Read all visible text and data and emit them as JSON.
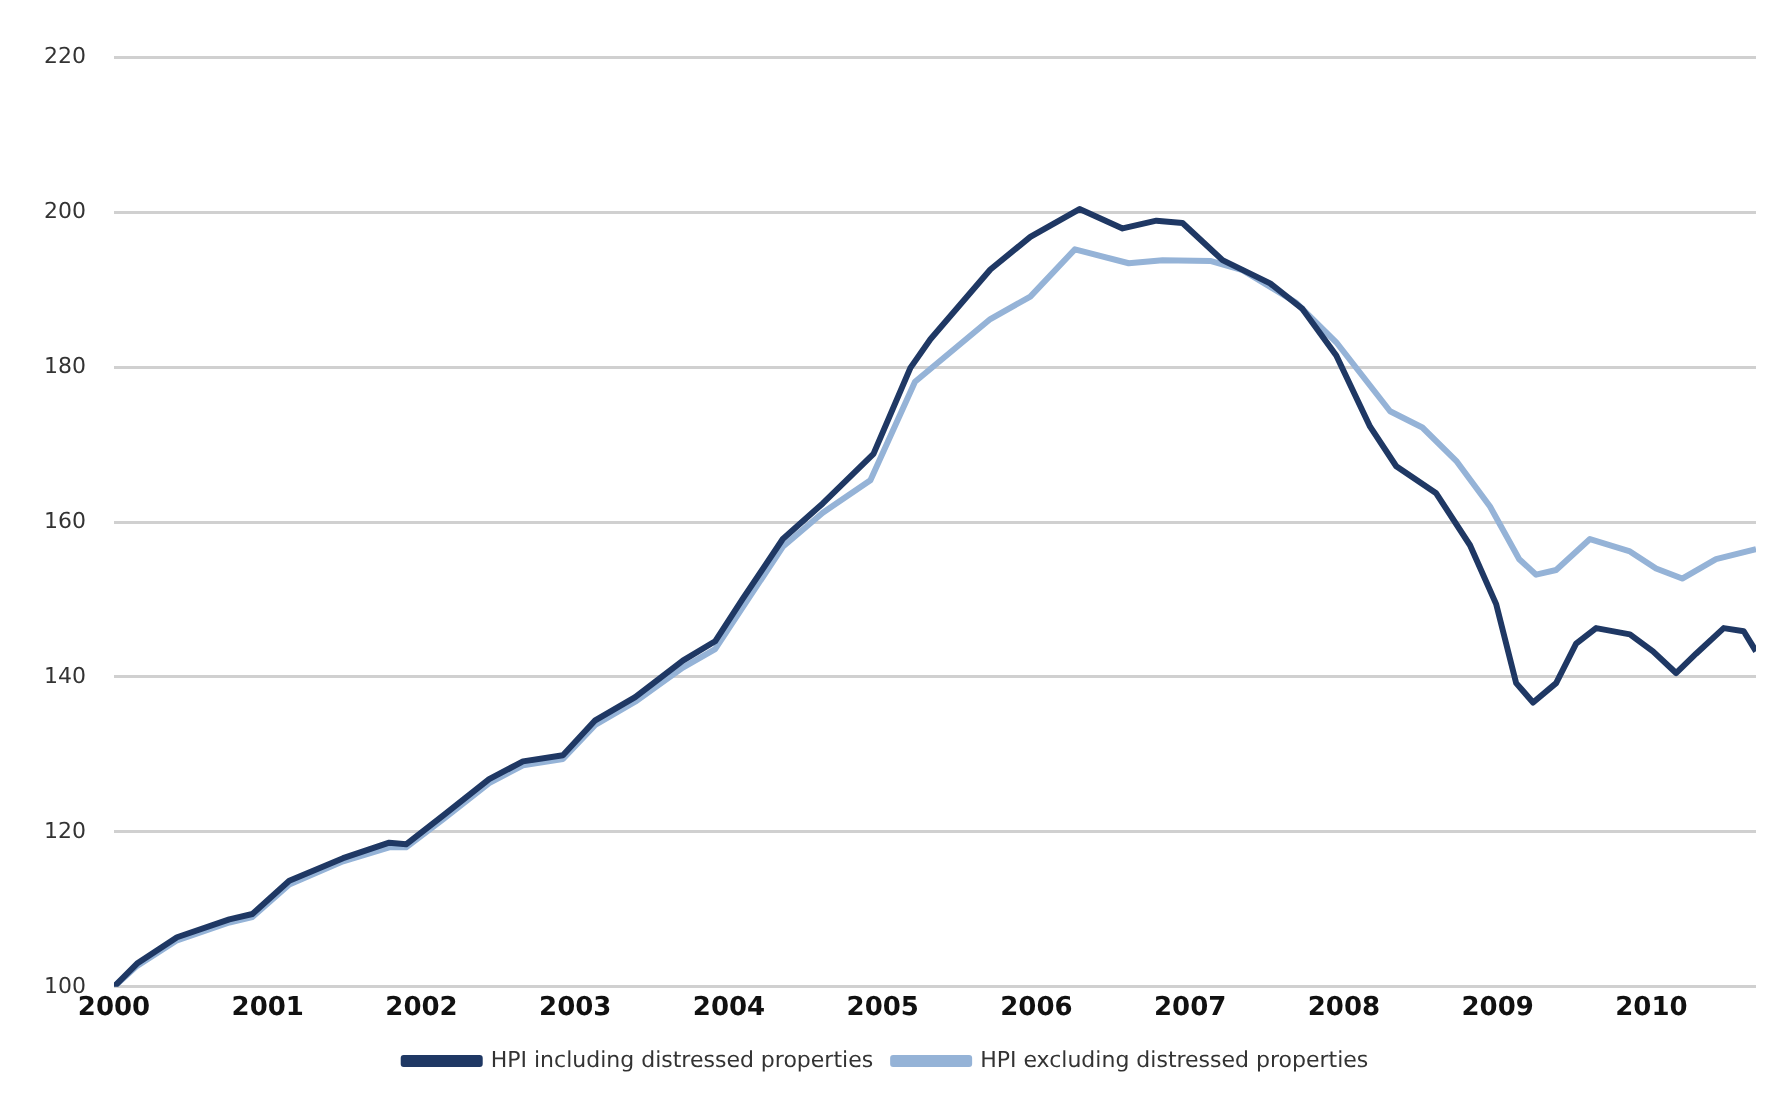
{
  "chart_data": {
    "type": "line",
    "series": [
      {
        "name": "HPI including distressed properties",
        "color": "#1f3864",
        "x": [
          2000,
          2000.15,
          2000.41,
          2000.75,
          2000.9,
          2001.14,
          2001.49,
          2001.79,
          2001.9,
          2002.14,
          2002.44,
          2002.66,
          2002.92,
          2003.13,
          2003.39,
          2003.7,
          2003.91,
          2004.09,
          2004.35,
          2004.61,
          2004.94,
          2005.18,
          2005.31,
          2005.7,
          2005.96,
          2006.28,
          2006.56,
          2006.78,
          2006.95,
          2007.21,
          2007.52,
          2007.73,
          2007.95,
          2008.17,
          2008.34,
          2008.6,
          2008.82,
          2008.99,
          2009.12,
          2009.23,
          2009.38,
          2009.51,
          2009.64,
          2009.86,
          2010.01,
          2010.16,
          2010.29,
          2010.47,
          2010.6,
          2010.68
        ],
        "values": [
          100,
          103,
          106.4,
          108.7,
          109.4,
          113.7,
          116.6,
          118.6,
          118.4,
          122.1,
          126.8,
          129.1,
          129.9,
          134.4,
          137.4,
          142.1,
          144.6,
          150.1,
          157.8,
          162.4,
          168.8,
          179.9,
          183.6,
          192.6,
          196.8,
          200.4,
          197.9,
          198.9,
          198.6,
          193.8,
          190.8,
          187.5,
          181.5,
          172.3,
          167.2,
          163.7,
          157,
          149.4,
          139.2,
          136.7,
          139.2,
          144.3,
          146.3,
          145.5,
          143.3,
          140.5,
          143,
          146.3,
          145.9,
          143.3
        ]
      },
      {
        "name": "HPI excluding distressed properties",
        "color": "#95b3d7",
        "x": [
          2000,
          2000.15,
          2000.41,
          2000.75,
          2000.9,
          2001.14,
          2001.49,
          2001.79,
          2001.9,
          2002.14,
          2002.44,
          2002.66,
          2002.92,
          2003.13,
          2003.39,
          2003.7,
          2003.91,
          2004.09,
          2004.35,
          2004.61,
          2004.92,
          2005.21,
          2005.7,
          2005.96,
          2006.25,
          2006.6,
          2006.82,
          2007.13,
          2007.34,
          2007.69,
          2007.95,
          2008.3,
          2008.51,
          2008.73,
          2008.95,
          2009.14,
          2009.25,
          2009.38,
          2009.6,
          2009.86,
          2010.03,
          2010.2,
          2010.42,
          2010.68
        ],
        "values": [
          100,
          102.7,
          106,
          108.3,
          109,
          113.2,
          116.2,
          118,
          118,
          121.6,
          126.3,
          128.6,
          129.4,
          133.8,
          136.8,
          141.2,
          143.6,
          149,
          156.8,
          161.2,
          165.4,
          178.1,
          186.2,
          189.1,
          195.2,
          193.4,
          193.8,
          193.7,
          192.5,
          188.3,
          183.2,
          174.3,
          172.2,
          167.9,
          162,
          155.2,
          153.2,
          153.8,
          157.8,
          156.2,
          154,
          152.7,
          155.2,
          156.5
        ]
      }
    ],
    "xlim": [
      2000,
      2010.68
    ],
    "xticks": [
      2000,
      2001,
      2002,
      2003,
      2004,
      2005,
      2006,
      2007,
      2008,
      2009,
      2010
    ],
    "ylim": [
      100,
      220
    ],
    "yticks": [
      100,
      120,
      140,
      160,
      180,
      200,
      220
    ],
    "grid": "y",
    "legend": "bottom",
    "marker": "none",
    "line_style": "solid"
  }
}
